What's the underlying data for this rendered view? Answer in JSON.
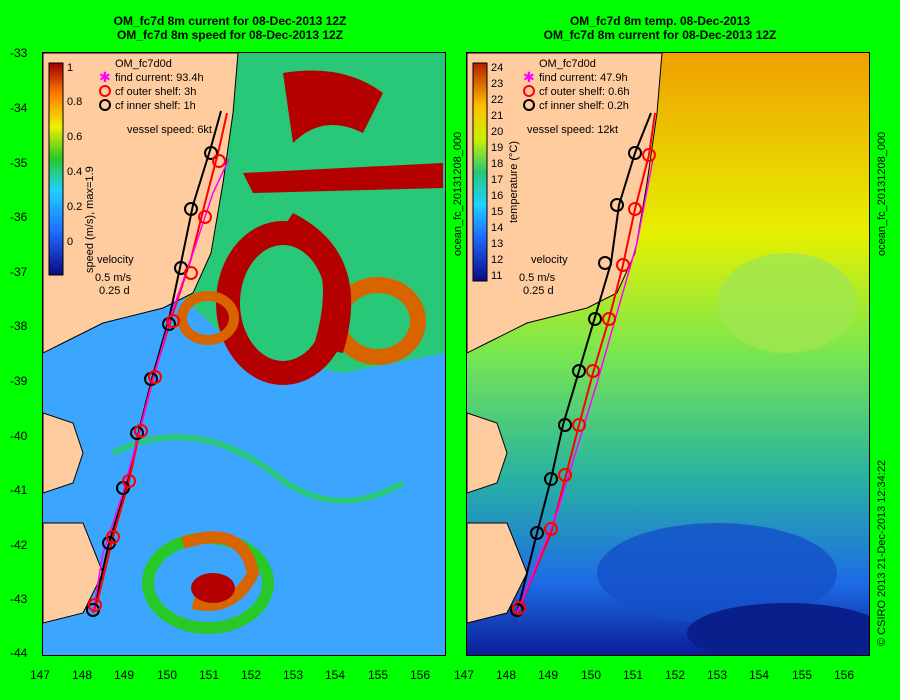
{
  "left_panel": {
    "title_line1": "OM_fc7d 8m current for 08-Dec-2013 12Z",
    "title_line2": "OM_fc7d 8m speed for 08-Dec-2013 12Z",
    "legend_title": "OM_fc7d0d",
    "legend": [
      "find current: 93.4h",
      "cf outer shelf: 3h",
      "cf inner shelf: 1h"
    ],
    "vessel_speed": "vessel speed: 6kt",
    "colorbar_label": "speed (m/s), max=1.9",
    "colorbar_ticks": [
      "1",
      "0.8",
      "0.6",
      "0.4",
      "0.2",
      "0"
    ],
    "velocity_label": "velocity",
    "velocity_scale": "0.5 m/s",
    "velocity_time": "0.25 d"
  },
  "right_panel": {
    "title_line1": "OM_fc7d 8m temp. 08-Dec-2013",
    "title_line2": "OM_fc7d 8m current for 08-Dec-2013 12Z",
    "legend_title": "OM_fc7d0d",
    "legend": [
      "find current: 47.9h",
      "cf outer shelf: 0.6h",
      "cf inner shelf: 0.2h"
    ],
    "vessel_speed": "vessel speed: 12kt",
    "colorbar_label": "temperature (°C)",
    "colorbar_ticks": [
      "24",
      "23",
      "22",
      "21",
      "20",
      "19",
      "18",
      "17",
      "16",
      "15",
      "14",
      "13",
      "12",
      "11"
    ],
    "velocity_label": "velocity",
    "velocity_scale": "0.5 m/s",
    "velocity_time": "0.25 d"
  },
  "y_axis_ticks": [
    "-33",
    "-34",
    "-35",
    "-36",
    "-37",
    "-38",
    "-39",
    "-40",
    "-41",
    "-42",
    "-43",
    "-44"
  ],
  "x_axis_ticks": [
    "147",
    "148",
    "149",
    "150",
    "151",
    "152",
    "153",
    "154",
    "155",
    "156"
  ],
  "side_label_left": "ocean_fc_20131208_000",
  "side_label_right": "ocean_fc_20131208_000",
  "copyright": "© CSIRO 2013   21-Dec-2013 12:34:22",
  "colors": {
    "background": "#00ff00",
    "land": "#ffcca0",
    "black_track": "#000000",
    "red_track": "#ff0000",
    "magenta": "#ff00ff"
  }
}
